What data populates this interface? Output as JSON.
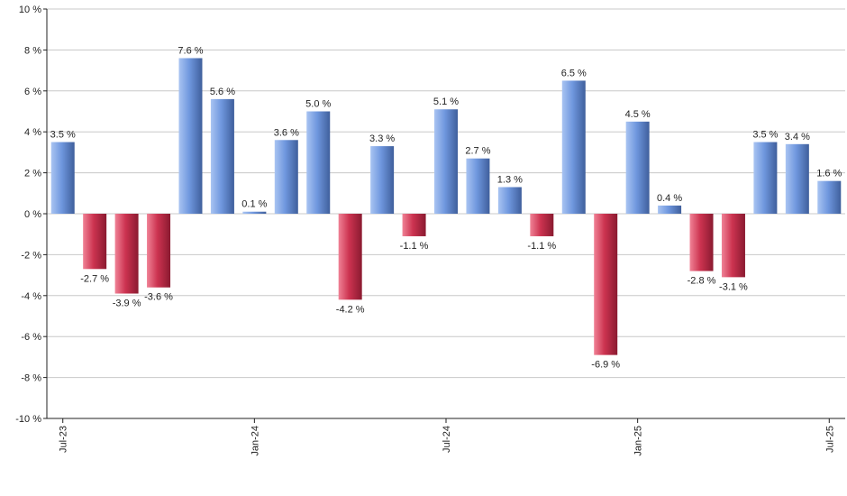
{
  "chart_data": {
    "type": "bar",
    "title": "",
    "xlabel": "",
    "ylabel": "",
    "ylim": [
      -10,
      10
    ],
    "ytick_step": 2,
    "y_unit": "%",
    "grid": true,
    "legend": "none",
    "colors": {
      "positive_light": "#a9c4f2",
      "positive": "#6f97de",
      "positive_dark": "#3f5f9c",
      "negative_light": "#f08296",
      "negative": "#cc3350",
      "negative_dark": "#8a1a30",
      "grid": "#c8c8c8",
      "axis": "#222222"
    },
    "categories": [
      "2023-07",
      "2023-08",
      "2023-09",
      "2023-10",
      "2023-11",
      "2023-12",
      "2024-01",
      "2024-02",
      "2024-03",
      "2024-04",
      "2024-05",
      "2024-06",
      "2024-07",
      "2024-08",
      "2024-09",
      "2024-10",
      "2024-11",
      "2024-12",
      "2025-01",
      "2025-02",
      "2025-03",
      "2025-04",
      "2025-05",
      "2025-06",
      "2025-07"
    ],
    "values": [
      3.5,
      -2.7,
      -3.9,
      -3.6,
      7.6,
      5.6,
      0.1,
      3.6,
      5.0,
      -4.2,
      3.3,
      -1.1,
      5.1,
      2.7,
      1.3,
      -1.1,
      6.5,
      -6.9,
      4.5,
      0.4,
      -2.8,
      -3.1,
      3.5,
      3.4,
      1.6
    ],
    "data_labels": [
      "3.5 %",
      "-2.7 %",
      "-3.9 %",
      "-3.6 %",
      "7.6 %",
      "5.6 %",
      "0.1 %",
      "3.6 %",
      "5.0 %",
      "-4.2 %",
      "3.3 %",
      "-1.1 %",
      "5.1 %",
      "2.7 %",
      "1.3 %",
      "-1.1 %",
      "6.5 %",
      "-6.9 %",
      "4.5 %",
      "0.4 %",
      "-2.8 %",
      "-3.1 %",
      "3.5 %",
      "3.4 %",
      "1.6 %"
    ],
    "y_tick_labels": [
      "10 %",
      "8 %",
      "6 %",
      "4 %",
      "2 %",
      "0 %",
      "-2 %",
      "-4 %",
      "-6 %",
      "-8 %",
      "-10 %"
    ],
    "x_tick_labels": [
      {
        "index": 0,
        "label": "Jul-23"
      },
      {
        "index": 6,
        "label": "Jan-24"
      },
      {
        "index": 12,
        "label": "Jul-24"
      },
      {
        "index": 18,
        "label": "Jan-25"
      },
      {
        "index": 24,
        "label": "Jul-25"
      }
    ]
  }
}
